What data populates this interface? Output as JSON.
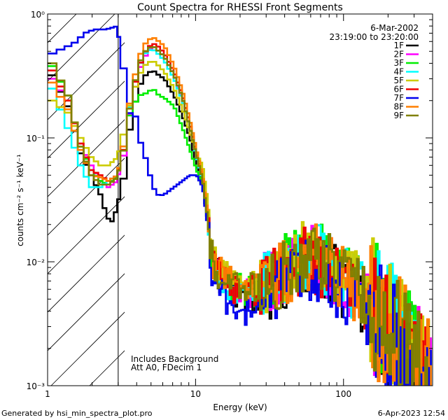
{
  "chart_data": {
    "type": "line",
    "title": "Count Spectra for RHESSI Front Segments",
    "xlabel": "Energy (keV)",
    "ylabel": "counts cm⁻² s⁻¹ keV⁻¹",
    "xscale": "log",
    "yscale": "log",
    "xlim": [
      1,
      400
    ],
    "ylim": [
      0.001,
      1.0
    ],
    "x_ticks": [
      {
        "value": 1,
        "label": "1"
      },
      {
        "value": 10,
        "label": "10"
      },
      {
        "value": 100,
        "label": "100"
      }
    ],
    "y_ticks": [
      {
        "value": 1,
        "label": "10⁰"
      },
      {
        "value": 0.1,
        "label": "10⁻¹"
      },
      {
        "value": 0.01,
        "label": "10⁻²"
      },
      {
        "value": 0.001,
        "label": "10⁻³"
      }
    ],
    "date": "6-Mar-2002",
    "time_range": "23:19:00 to 23:20:00",
    "hatched_region_max_kev": 3,
    "annotation_lines": [
      "Includes Background",
      "Att A0, FDecim 1"
    ],
    "legend_position": "top-right",
    "series": [
      {
        "name": "1F",
        "color": "#000000",
        "low": [
          [
            1,
            0.32
          ],
          [
            1.3,
            0.18
          ],
          [
            1.6,
            0.075
          ],
          [
            1.9,
            0.05
          ],
          [
            2.2,
            0.035
          ],
          [
            2.4,
            0.025
          ],
          [
            2.6,
            0.02
          ],
          [
            2.9,
            0.028
          ],
          [
            3.2,
            0.06
          ],
          [
            3.5,
            0.14
          ],
          [
            4,
            0.26
          ],
          [
            4.5,
            0.33
          ],
          [
            5,
            0.35
          ],
          [
            5.5,
            0.32
          ],
          [
            6,
            0.3
          ],
          [
            7,
            0.22
          ],
          [
            8,
            0.15
          ],
          [
            9,
            0.1
          ],
          [
            10,
            0.06
          ],
          [
            11,
            0.04
          ],
          [
            12,
            0.02
          ],
          [
            13,
            0.009
          ],
          [
            15,
            0.0075
          ],
          [
            18,
            0.006
          ],
          [
            22,
            0.0055
          ],
          [
            27,
            0.0056
          ]
        ],
        "scale": 0.9,
        "seed": 11
      },
      {
        "name": "2F",
        "color": "#ff00ff",
        "low": [
          [
            1,
            0.3
          ],
          [
            1.3,
            0.2
          ],
          [
            1.6,
            0.09
          ],
          [
            1.9,
            0.06
          ],
          [
            2.2,
            0.045
          ],
          [
            2.5,
            0.04
          ],
          [
            2.9,
            0.045
          ],
          [
            3.2,
            0.09
          ],
          [
            3.5,
            0.18
          ],
          [
            4,
            0.35
          ],
          [
            4.5,
            0.48
          ],
          [
            5,
            0.55
          ],
          [
            5.5,
            0.5
          ],
          [
            6,
            0.45
          ],
          [
            7,
            0.32
          ],
          [
            8,
            0.2
          ],
          [
            9,
            0.12
          ],
          [
            10,
            0.07
          ],
          [
            11,
            0.045
          ],
          [
            12,
            0.022
          ],
          [
            13,
            0.0095
          ],
          [
            15,
            0.008
          ],
          [
            18,
            0.0065
          ],
          [
            22,
            0.006
          ],
          [
            27,
            0.006
          ]
        ],
        "scale": 1.0,
        "seed": 22
      },
      {
        "name": "3F",
        "color": "#00ee00",
        "low": [
          [
            1,
            0.38
          ],
          [
            1.3,
            0.22
          ],
          [
            1.6,
            0.085
          ],
          [
            1.9,
            0.055
          ],
          [
            2.2,
            0.045
          ],
          [
            2.5,
            0.042
          ],
          [
            2.9,
            0.05
          ],
          [
            3.2,
            0.1
          ],
          [
            3.5,
            0.17
          ],
          [
            4,
            0.22
          ],
          [
            4.5,
            0.23
          ],
          [
            5,
            0.25
          ],
          [
            5.5,
            0.22
          ],
          [
            6,
            0.21
          ],
          [
            7,
            0.18
          ],
          [
            8,
            0.12
          ],
          [
            9,
            0.08
          ],
          [
            10,
            0.055
          ],
          [
            11,
            0.04
          ],
          [
            12,
            0.02
          ],
          [
            13,
            0.009
          ],
          [
            15,
            0.008
          ],
          [
            18,
            0.0065
          ],
          [
            22,
            0.006
          ],
          [
            27,
            0.0062
          ]
        ],
        "scale": 1.15,
        "seed": 33
      },
      {
        "name": "4F",
        "color": "#00ffff",
        "low": [
          [
            1,
            0.25
          ],
          [
            1.3,
            0.12
          ],
          [
            1.6,
            0.06
          ],
          [
            1.9,
            0.04
          ],
          [
            2.2,
            0.04
          ],
          [
            2.5,
            0.045
          ],
          [
            2.9,
            0.05
          ],
          [
            3.2,
            0.11
          ],
          [
            3.5,
            0.2
          ],
          [
            4,
            0.38
          ],
          [
            4.5,
            0.5
          ],
          [
            5,
            0.52
          ],
          [
            5.5,
            0.47
          ],
          [
            6,
            0.42
          ],
          [
            7,
            0.3
          ],
          [
            8,
            0.2
          ],
          [
            9,
            0.12
          ],
          [
            10,
            0.07
          ],
          [
            11,
            0.045
          ],
          [
            12,
            0.022
          ],
          [
            13,
            0.009
          ],
          [
            15,
            0.0075
          ],
          [
            18,
            0.0062
          ],
          [
            22,
            0.0058
          ],
          [
            27,
            0.006
          ]
        ],
        "scale": 1.05,
        "seed": 44
      },
      {
        "name": "5F",
        "color": "#cccc00",
        "low": [
          [
            1,
            0.2
          ],
          [
            1.3,
            0.16
          ],
          [
            1.6,
            0.1
          ],
          [
            1.9,
            0.07
          ],
          [
            2.2,
            0.06
          ],
          [
            2.5,
            0.06
          ],
          [
            2.9,
            0.07
          ],
          [
            3.2,
            0.13
          ],
          [
            3.5,
            0.2
          ],
          [
            4,
            0.32
          ],
          [
            4.5,
            0.4
          ],
          [
            5,
            0.42
          ],
          [
            5.5,
            0.38
          ],
          [
            6,
            0.34
          ],
          [
            7,
            0.25
          ],
          [
            8,
            0.17
          ],
          [
            9,
            0.11
          ],
          [
            10,
            0.075
          ],
          [
            11,
            0.06
          ],
          [
            12,
            0.03
          ],
          [
            13,
            0.011
          ],
          [
            15,
            0.009
          ],
          [
            18,
            0.0072
          ],
          [
            22,
            0.0065
          ],
          [
            27,
            0.0065
          ]
        ],
        "scale": 1.1,
        "seed": 55
      },
      {
        "name": "6F",
        "color": "#ee0000",
        "low": [
          [
            1,
            0.35
          ],
          [
            1.3,
            0.2
          ],
          [
            1.6,
            0.09
          ],
          [
            1.9,
            0.055
          ],
          [
            2.2,
            0.05
          ],
          [
            2.5,
            0.045
          ],
          [
            2.9,
            0.05
          ],
          [
            3.2,
            0.1
          ],
          [
            3.5,
            0.2
          ],
          [
            4,
            0.38
          ],
          [
            4.5,
            0.52
          ],
          [
            5,
            0.58
          ],
          [
            5.5,
            0.54
          ],
          [
            6,
            0.48
          ],
          [
            7,
            0.34
          ],
          [
            8,
            0.22
          ],
          [
            9,
            0.13
          ],
          [
            10,
            0.075
          ],
          [
            11,
            0.048
          ],
          [
            12,
            0.022
          ],
          [
            13,
            0.0095
          ],
          [
            15,
            0.008
          ],
          [
            18,
            0.0065
          ],
          [
            22,
            0.006
          ],
          [
            27,
            0.006
          ]
        ],
        "scale": 0.95,
        "seed": 66
      },
      {
        "name": "7F",
        "color": "#0000ee",
        "low": [
          [
            1,
            0.48
          ],
          [
            1.3,
            0.55
          ],
          [
            1.5,
            0.6
          ],
          [
            1.7,
            0.7
          ],
          [
            2,
            0.75
          ],
          [
            2.4,
            0.75
          ],
          [
            2.7,
            0.78
          ],
          [
            2.9,
            0.8
          ],
          [
            3.2,
            0.25
          ],
          [
            3.5,
            0.14
          ],
          [
            3.8,
            0.15
          ],
          [
            4,
            0.1
          ],
          [
            4.5,
            0.065
          ],
          [
            5,
            0.04
          ],
          [
            5.5,
            0.034
          ],
          [
            6,
            0.035
          ],
          [
            7,
            0.04
          ],
          [
            8,
            0.045
          ],
          [
            9,
            0.05
          ],
          [
            10,
            0.05
          ],
          [
            11,
            0.04
          ],
          [
            12,
            0.018
          ],
          [
            13,
            0.007
          ],
          [
            15,
            0.0055
          ],
          [
            18,
            0.0045
          ],
          [
            22,
            0.004
          ],
          [
            27,
            0.0042
          ]
        ],
        "scale": 0.8,
        "seed": 77
      },
      {
        "name": "8F",
        "color": "#ff7f00",
        "low": [
          [
            1,
            0.28
          ],
          [
            1.3,
            0.17
          ],
          [
            1.6,
            0.08
          ],
          [
            1.9,
            0.05
          ],
          [
            2.2,
            0.048
          ],
          [
            2.5,
            0.045
          ],
          [
            2.9,
            0.05
          ],
          [
            3.2,
            0.11
          ],
          [
            3.5,
            0.22
          ],
          [
            4,
            0.45
          ],
          [
            4.5,
            0.6
          ],
          [
            5,
            0.65
          ],
          [
            5.5,
            0.6
          ],
          [
            6,
            0.55
          ],
          [
            7,
            0.38
          ],
          [
            8,
            0.24
          ],
          [
            9,
            0.14
          ],
          [
            10,
            0.08
          ],
          [
            11,
            0.05
          ],
          [
            12,
            0.024
          ],
          [
            13,
            0.01
          ],
          [
            15,
            0.0085
          ],
          [
            18,
            0.007
          ],
          [
            22,
            0.0065
          ],
          [
            27,
            0.0065
          ]
        ],
        "scale": 1.0,
        "seed": 88
      },
      {
        "name": "9F",
        "color": "#808000",
        "low": [
          [
            1,
            0.4
          ],
          [
            1.3,
            0.22
          ],
          [
            1.6,
            0.085
          ],
          [
            1.9,
            0.05
          ],
          [
            2.2,
            0.042
          ],
          [
            2.5,
            0.042
          ],
          [
            2.9,
            0.048
          ],
          [
            3.2,
            0.1
          ],
          [
            3.5,
            0.2
          ],
          [
            4,
            0.4
          ],
          [
            4.5,
            0.52
          ],
          [
            5,
            0.55
          ],
          [
            5.5,
            0.5
          ],
          [
            6,
            0.45
          ],
          [
            7,
            0.32
          ],
          [
            8,
            0.21
          ],
          [
            9,
            0.12
          ],
          [
            10,
            0.072
          ],
          [
            11,
            0.046
          ],
          [
            12,
            0.021
          ],
          [
            13,
            0.0095
          ],
          [
            15,
            0.008
          ],
          [
            18,
            0.0068
          ],
          [
            22,
            0.0063
          ],
          [
            27,
            0.0064
          ]
        ],
        "scale": 1.0,
        "seed": 99
      }
    ],
    "nonthermal_shape": [
      [
        27,
        0.0065
      ],
      [
        40,
        0.009
      ],
      [
        55,
        0.0115
      ],
      [
        65,
        0.0115
      ],
      [
        80,
        0.0095
      ],
      [
        100,
        0.0075
      ],
      [
        130,
        0.0058
      ],
      [
        160,
        0.0045
      ],
      [
        200,
        0.0032
      ],
      [
        250,
        0.0022
      ],
      [
        300,
        0.0015
      ],
      [
        350,
        0.0012
      ],
      [
        400,
        0.0011
      ]
    ]
  },
  "footer": {
    "generated_by": "Generated by hsi_min_spectra_plot.pro",
    "timestamp": "6-Apr-2023 12:54"
  }
}
